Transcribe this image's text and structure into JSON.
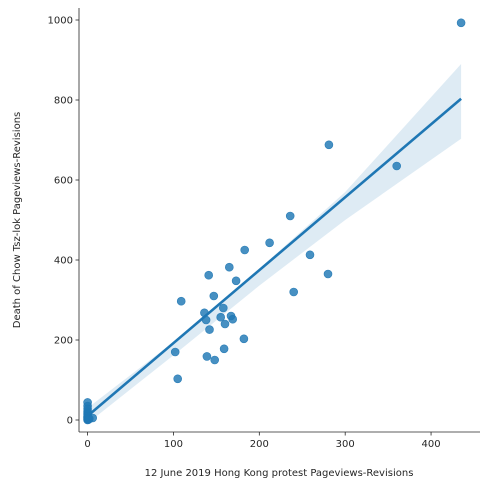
{
  "chart_data": {
    "type": "scatter",
    "xlabel": "12 June 2019 Hong Kong protest Pageviews-Revisions",
    "ylabel": "Death of Chow Tsz-lok Pageviews-Revisions",
    "xlim": [
      -10,
      457
    ],
    "ylim": [
      -30,
      1030
    ],
    "x_ticks": [
      0,
      100,
      200,
      300,
      400
    ],
    "y_ticks": [
      0,
      200,
      400,
      600,
      800,
      1000
    ],
    "grid": false,
    "colors": {
      "points": "#1f77b4",
      "line": "#1f77b4",
      "band": "#1f77b4"
    },
    "points": [
      {
        "x": 0,
        "y": 0
      },
      {
        "x": 0,
        "y": 2
      },
      {
        "x": 0,
        "y": 4
      },
      {
        "x": 0,
        "y": 6
      },
      {
        "x": 0,
        "y": 8
      },
      {
        "x": 0,
        "y": 10
      },
      {
        "x": 0,
        "y": 14
      },
      {
        "x": 0,
        "y": 18
      },
      {
        "x": 0,
        "y": 22
      },
      {
        "x": 0,
        "y": 28
      },
      {
        "x": 0,
        "y": 35
      },
      {
        "x": 0,
        "y": 44
      },
      {
        "x": 1,
        "y": 1
      },
      {
        "x": 1,
        "y": 5
      },
      {
        "x": 2,
        "y": 3
      },
      {
        "x": 6,
        "y": 5
      },
      {
        "x": 102,
        "y": 170
      },
      {
        "x": 105,
        "y": 103
      },
      {
        "x": 109,
        "y": 297
      },
      {
        "x": 136,
        "y": 268
      },
      {
        "x": 138,
        "y": 250
      },
      {
        "x": 139,
        "y": 159
      },
      {
        "x": 141,
        "y": 362
      },
      {
        "x": 142,
        "y": 226
      },
      {
        "x": 147,
        "y": 310
      },
      {
        "x": 148,
        "y": 150
      },
      {
        "x": 155,
        "y": 257
      },
      {
        "x": 158,
        "y": 280
      },
      {
        "x": 159,
        "y": 178
      },
      {
        "x": 160,
        "y": 240
      },
      {
        "x": 165,
        "y": 382
      },
      {
        "x": 167,
        "y": 260
      },
      {
        "x": 169,
        "y": 252
      },
      {
        "x": 173,
        "y": 348
      },
      {
        "x": 182,
        "y": 203
      },
      {
        "x": 183,
        "y": 425
      },
      {
        "x": 212,
        "y": 443
      },
      {
        "x": 236,
        "y": 510
      },
      {
        "x": 240,
        "y": 320
      },
      {
        "x": 259,
        "y": 413
      },
      {
        "x": 280,
        "y": 365
      },
      {
        "x": 281,
        "y": 688
      },
      {
        "x": 360,
        "y": 635
      },
      {
        "x": 435,
        "y": 993
      }
    ],
    "regression": {
      "x": [
        0,
        435
      ],
      "y": [
        10,
        803
      ]
    },
    "confidence_band": {
      "x": [
        0,
        100,
        200,
        300,
        435
      ],
      "lower": [
        -8,
        162,
        336,
        500,
        703
      ],
      "upper": [
        30,
        195,
        378,
        570,
        890
      ]
    }
  }
}
